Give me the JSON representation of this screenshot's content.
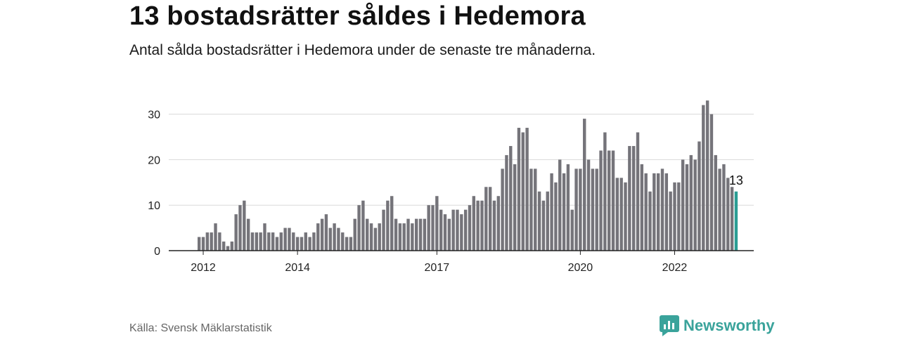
{
  "header": {
    "title": "13 bostadsrätter såldes i Hedemora",
    "subtitle": "Antal sålda bostadsrätter i Hedemora under de senaste tre månaderna."
  },
  "footer": {
    "source": "Källa: Svensk Mäklarstatistik",
    "brand": "Newsworthy"
  },
  "colors": {
    "bar": "#75747a",
    "highlight": "#2a9d94",
    "grid": "#d9d9d9",
    "brand": "#3aa39b"
  },
  "chart_data": {
    "type": "bar",
    "title": "13 bostadsrätter såldes i Hedemora",
    "subtitle": "Antal sålda bostadsrätter i Hedemora under de senaste tre månaderna.",
    "xlabel": "",
    "ylabel": "",
    "ylim": [
      0,
      34
    ],
    "yticks": [
      0,
      10,
      20,
      30
    ],
    "grid": true,
    "x_tick_labels": [
      {
        "label": "2012",
        "index": 1
      },
      {
        "label": "2014",
        "index": 24
      },
      {
        "label": "2017",
        "index": 58
      },
      {
        "label": "2020",
        "index": 93
      },
      {
        "label": "2022",
        "index": 116
      }
    ],
    "values": [
      3,
      3,
      4,
      4,
      6,
      4,
      2,
      1,
      2,
      8,
      10,
      11,
      7,
      4,
      4,
      4,
      6,
      4,
      4,
      3,
      4,
      5,
      5,
      4,
      3,
      3,
      4,
      3,
      4,
      6,
      7,
      8,
      5,
      6,
      5,
      4,
      3,
      3,
      7,
      10,
      11,
      7,
      6,
      5,
      6,
      9,
      11,
      12,
      7,
      6,
      6,
      7,
      6,
      7,
      7,
      7,
      10,
      10,
      12,
      9,
      8,
      7,
      9,
      9,
      8,
      9,
      10,
      12,
      11,
      11,
      14,
      14,
      11,
      12,
      18,
      21,
      23,
      19,
      27,
      26,
      27,
      18,
      18,
      13,
      11,
      13,
      17,
      15,
      20,
      17,
      19,
      9,
      18,
      18,
      29,
      20,
      18,
      18,
      22,
      26,
      22,
      22,
      16,
      16,
      15,
      23,
      23,
      26,
      19,
      17,
      13,
      17,
      17,
      18,
      17,
      13,
      15,
      15,
      20,
      19,
      21,
      20,
      24,
      32,
      33,
      30,
      21,
      18,
      19,
      16,
      14,
      13
    ],
    "highlight_last": true,
    "annotation": "13"
  }
}
